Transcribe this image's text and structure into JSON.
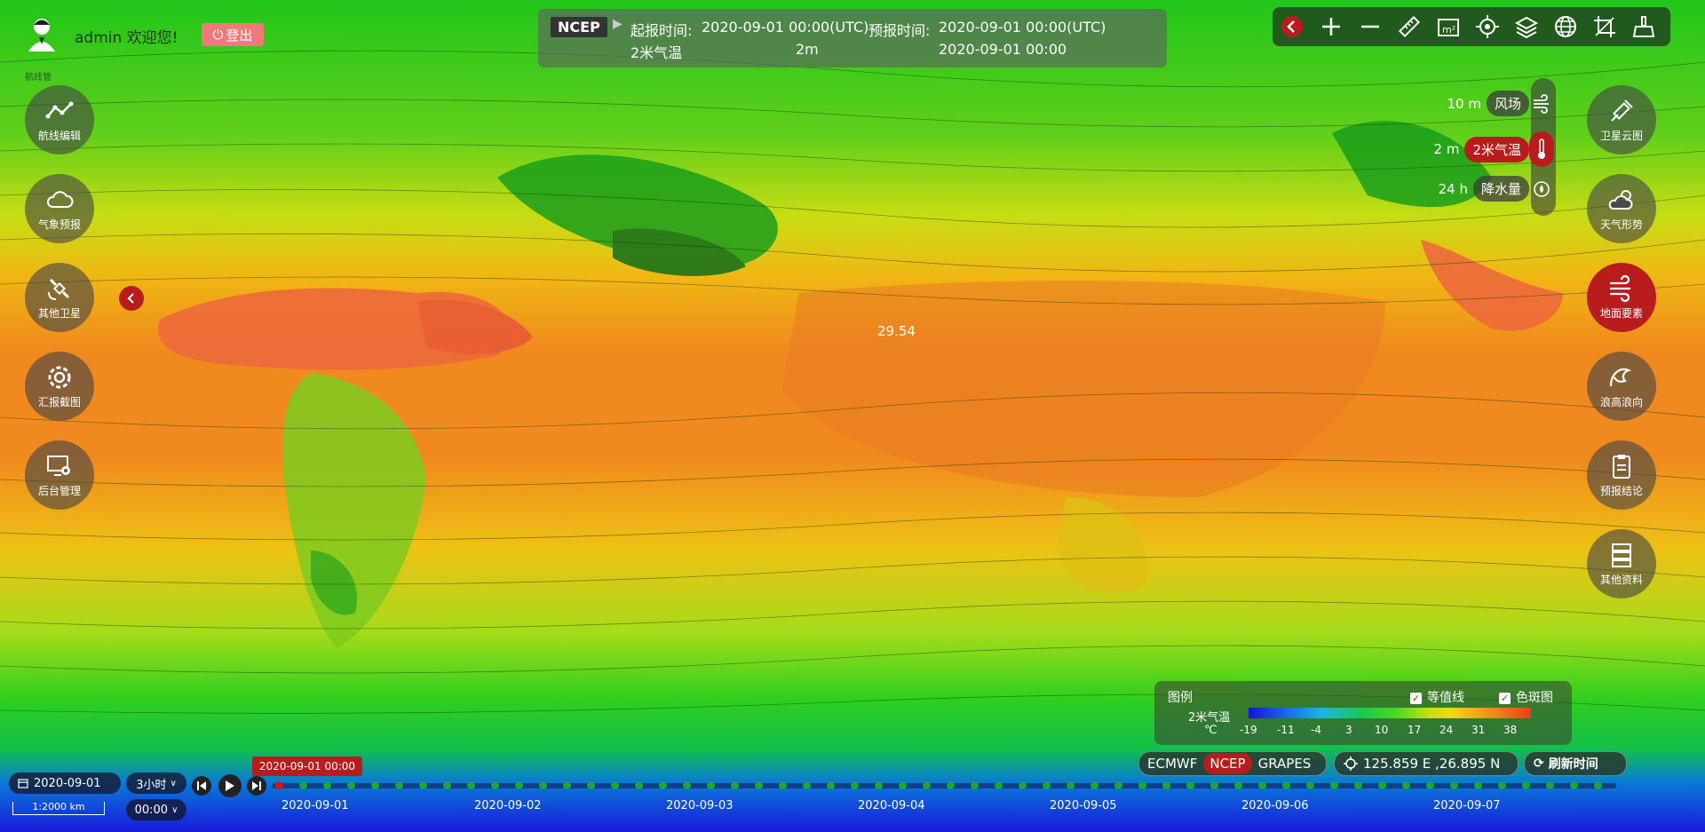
{
  "user": {
    "name": "admin",
    "welcome": "欢迎您!",
    "logout_label": "登出",
    "sub_label": "航线管"
  },
  "header": {
    "model": "NCEP",
    "start_label": "起报时间:",
    "start_value": "2020-09-01 00:00(UTC)",
    "forecast_label": "预报时间:",
    "forecast_value": "2020-09-01 00:00(UTC)",
    "element": "2米气温",
    "level": "2m",
    "valid_time": "2020-09-01 00:00"
  },
  "left_menu": [
    {
      "label": "航线编辑",
      "icon": "route-line-icon"
    },
    {
      "label": "气象预报",
      "icon": "cloud-icon"
    },
    {
      "label": "其他卫星",
      "icon": "satellite-icon"
    },
    {
      "label": "汇报截图",
      "icon": "gear-flower-icon"
    },
    {
      "label": "后台管理",
      "icon": "monitor-gear-icon"
    }
  ],
  "right_menu": [
    {
      "label": "卫星云图",
      "icon": "satellite-icon",
      "active": false
    },
    {
      "label": "天气形势",
      "icon": "cloud-sun-icon",
      "active": false
    },
    {
      "label": "地面要素",
      "icon": "wind-lines-icon",
      "active": true
    },
    {
      "label": "浪高浪向",
      "icon": "wave-icon",
      "active": false
    },
    {
      "label": "预报结论",
      "icon": "clipboard-icon",
      "active": false
    },
    {
      "label": "其他资料",
      "icon": "server-stack-icon",
      "active": false
    }
  ],
  "toolbar": [
    {
      "icon": "back-arrow-icon"
    },
    {
      "icon": "zoom-in-icon"
    },
    {
      "icon": "zoom-out-icon"
    },
    {
      "icon": "ruler-icon"
    },
    {
      "icon": "area-m2-icon",
      "text": "m²"
    },
    {
      "icon": "locate-crosshair-icon"
    },
    {
      "icon": "layers-icon"
    },
    {
      "icon": "globe-icon"
    },
    {
      "icon": "crop-icon"
    },
    {
      "icon": "clear-brush-icon"
    }
  ],
  "layers": [
    {
      "value": "10 m",
      "label": "风场",
      "icon": "wind-icon",
      "active": false
    },
    {
      "value": "2 m",
      "label": "2米气温",
      "icon": "thermometer-icon",
      "active": true
    },
    {
      "value": "24 h",
      "label": "降水量",
      "icon": "raindrop-icon",
      "active": false
    }
  ],
  "map_value": "29.54",
  "legend": {
    "title": "图例",
    "isoline_label": "等值线",
    "colormap_label": "色斑图",
    "element": "2米气温",
    "unit": "℃",
    "ticks": [
      "-19",
      "-11",
      "-4",
      "3",
      "10",
      "17",
      "24",
      "31",
      "38"
    ]
  },
  "sources": {
    "items": [
      "ECMWF",
      "NCEP",
      "GRAPES"
    ],
    "active": "NCEP"
  },
  "coords": "125.859 E ,26.895 N",
  "refresh_label": "刷新时间",
  "timeline": {
    "date": "2020-09-01",
    "interval": "3小时",
    "time": "00:00",
    "scale": "1:2000 km",
    "current": "2020-09-01 00:00",
    "days": [
      "2020-09-01",
      "2020-09-02",
      "2020-09-03",
      "2020-09-04",
      "2020-09-05",
      "2020-09-06",
      "2020-09-07"
    ]
  },
  "colors": {
    "accent": "#b91c1c",
    "tick": "#19a838"
  }
}
